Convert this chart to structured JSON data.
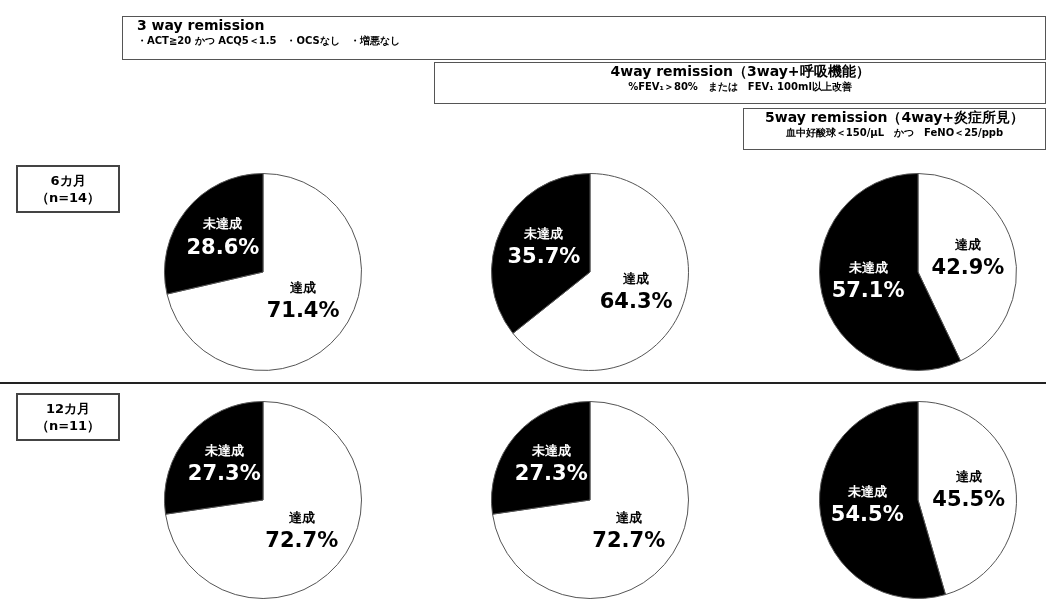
{
  "chart_data": [
    {
      "type": "pie",
      "title": "3 way remission",
      "subtitle": "・ACT≧20 かつ ACQ5＜1.5　・OCSなし　・増悪なし",
      "annotations": [
        "6カ月",
        "（n=14）"
      ],
      "categories": [
        "達成",
        "未達成"
      ],
      "values": [
        71.4,
        28.6
      ],
      "value_labels": [
        "71.4%",
        "28.6%"
      ],
      "colors": [
        "#ffffff",
        "#000000"
      ]
    },
    {
      "type": "pie",
      "title": "4way  remission（3way+呼吸機能）",
      "subtitle": "%FEV₁＞80%　または　FEV₁ 100ml以上改善",
      "categories": [
        "達成",
        "未達成"
      ],
      "values": [
        64.3,
        35.7
      ],
      "value_labels": [
        "64.3%",
        "35.7%"
      ],
      "colors": [
        "#ffffff",
        "#000000"
      ]
    },
    {
      "type": "pie",
      "title": "5way remission（4way+炎症所見）",
      "subtitle": "血中好酸球＜150/μL　かつ　FeNO＜25/ppb",
      "categories": [
        "達成",
        "未達成"
      ],
      "values": [
        42.9,
        57.1
      ],
      "value_labels": [
        "42.9%",
        "57.1%"
      ],
      "colors": [
        "#ffffff",
        "#000000"
      ]
    },
    {
      "type": "pie",
      "annotations": [
        "12カ月",
        "（n=11）"
      ],
      "categories": [
        "達成",
        "未達成"
      ],
      "values": [
        72.7,
        27.3
      ],
      "value_labels": [
        "72.7%",
        "27.3%"
      ],
      "colors": [
        "#ffffff",
        "#000000"
      ]
    },
    {
      "type": "pie",
      "categories": [
        "達成",
        "未達成"
      ],
      "values": [
        72.7,
        27.3
      ],
      "value_labels": [
        "72.7%",
        "27.3%"
      ],
      "colors": [
        "#ffffff",
        "#000000"
      ]
    },
    {
      "type": "pie",
      "categories": [
        "達成",
        "未達成"
      ],
      "values": [
        45.5,
        54.5
      ],
      "value_labels": [
        "45.5%",
        "54.5%"
      ],
      "colors": [
        "#ffffff",
        "#000000"
      ]
    }
  ]
}
